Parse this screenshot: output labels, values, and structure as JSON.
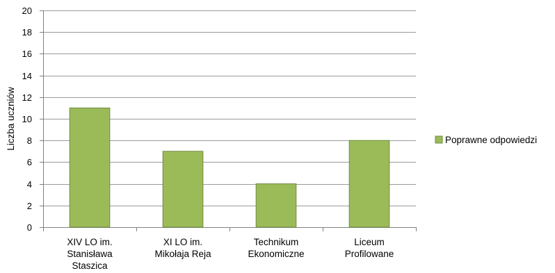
{
  "chart_data": {
    "type": "bar",
    "categories": [
      [
        "XIV LO im.",
        "Stanisława",
        "Staszica"
      ],
      [
        "XI LO im.",
        "Mikołaja Reja"
      ],
      [
        "Technikum",
        "Ekonomiczne"
      ],
      [
        "Liceum",
        "Profilowane"
      ]
    ],
    "series": [
      {
        "name": "Poprawne odpowiedzi",
        "values": [
          11,
          7,
          4,
          8
        ],
        "color": "#9BBB59"
      }
    ],
    "ylabel": "Liczba uczniów",
    "xlabel": "",
    "title": "",
    "ylim": [
      0,
      20
    ],
    "yticks": [
      0,
      2,
      4,
      6,
      8,
      10,
      12,
      14,
      16,
      18,
      20
    ],
    "grid": true,
    "legend_position": "right",
    "bar_edge_color": "#6E8B3D",
    "grid_color": "#9A9A9A"
  }
}
